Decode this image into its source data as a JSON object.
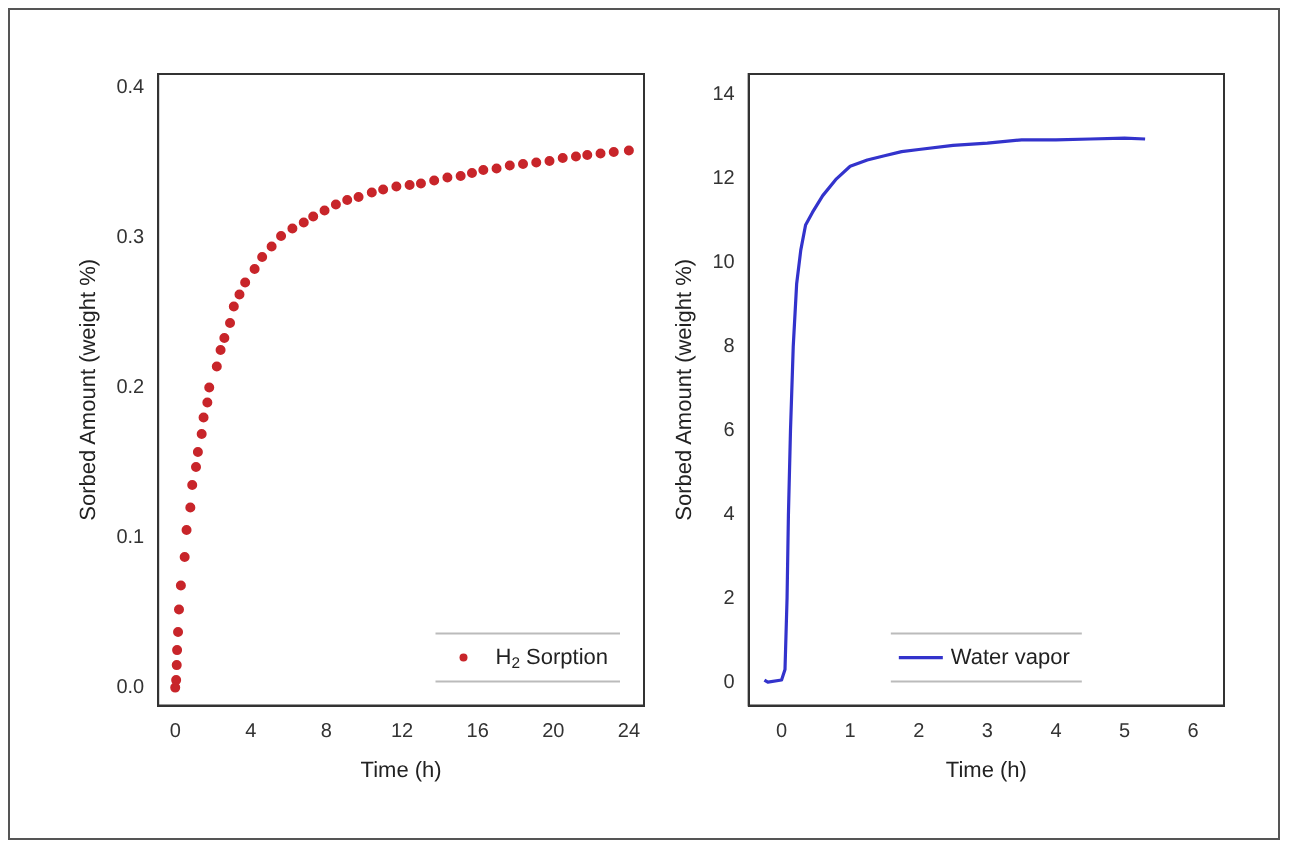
{
  "chart_data": [
    {
      "type": "scatter",
      "xlabel": "Time (h)",
      "ylabel": "Sorbed Amount (weight %)",
      "xlim": [
        -0.9,
        24.8
      ],
      "ylim": [
        -0.012,
        0.409
      ],
      "xticks": [
        0,
        4,
        8,
        12,
        16,
        20,
        24
      ],
      "yticks": [
        {
          "value": 0,
          "label": "0.0"
        },
        0.1,
        0.2,
        0.3,
        0.4
      ],
      "legend": "bottom right",
      "marker": "circle",
      "grid": false,
      "series": [
        {
          "name": "H$_{2}$ Sorption",
          "color": "#c8252a",
          "x": [
            0,
            0.05,
            0.08,
            0.1,
            0.15,
            0.2,
            0.3,
            0.5,
            0.6,
            0.8,
            0.9,
            1.1,
            1.2,
            1.4,
            1.5,
            1.7,
            1.8,
            2.2,
            2.4,
            2.6,
            2.9,
            3.1,
            3.4,
            3.7,
            4.2,
            4.6,
            5.1,
            5.6,
            6.2,
            6.8,
            7.3,
            7.9,
            8.5,
            9.1,
            9.7,
            10.4,
            11,
            11.7,
            12.4,
            13,
            13.7,
            14.4,
            15.1,
            15.7,
            16.3,
            17,
            17.7,
            18.4,
            19.1,
            19.8,
            20.5,
            21.2,
            21.8,
            22.5,
            23.2,
            24
          ],
          "values": [
            0,
            0.005,
            0.015,
            0.025,
            0.037,
            0.052,
            0.068,
            0.087,
            0.105,
            0.12,
            0.135,
            0.147,
            0.157,
            0.169,
            0.18,
            0.19,
            0.2,
            0.214,
            0.225,
            0.233,
            0.243,
            0.254,
            0.262,
            0.27,
            0.279,
            0.287,
            0.294,
            0.301,
            0.306,
            0.31,
            0.314,
            0.318,
            0.322,
            0.325,
            0.327,
            0.33,
            0.332,
            0.334,
            0.335,
            0.336,
            0.338,
            0.34,
            0.341,
            0.343,
            0.345,
            0.346,
            0.348,
            0.349,
            0.35,
            0.351,
            0.353,
            0.354,
            0.355,
            0.356,
            0.357,
            0.358
          ]
        }
      ]
    },
    {
      "type": "line",
      "xlabel": "Time (h)",
      "ylabel": "Sorbed Amount (weight %)",
      "xlim": [
        -0.48,
        6.45
      ],
      "ylim": [
        -0.56,
        14.5
      ],
      "xticks": [
        0,
        1,
        2,
        3,
        4,
        5,
        6
      ],
      "yticks": [
        0,
        2,
        4,
        6,
        8,
        10,
        12,
        14
      ],
      "legend": "bottom",
      "marker": "none",
      "line_style": "solid",
      "grid": false,
      "series": [
        {
          "name": "Water vapor",
          "color": "#3333cc",
          "x": [
            -0.25,
            -0.2,
            0,
            0.05,
            0.08,
            0.1,
            0.13,
            0.17,
            0.22,
            0.28,
            0.35,
            0.45,
            0.6,
            0.8,
            1,
            1.25,
            1.5,
            1.75,
            2,
            2.5,
            3,
            3.5,
            4,
            4.5,
            5,
            5.3
          ],
          "values": [
            0.05,
            0,
            0.05,
            0.3,
            2,
            4,
            6,
            8,
            9.5,
            10.3,
            10.9,
            11.2,
            11.6,
            12,
            12.3,
            12.45,
            12.55,
            12.65,
            12.7,
            12.8,
            12.85,
            12.93,
            12.93,
            12.95,
            12.97,
            12.95
          ]
        }
      ]
    }
  ]
}
